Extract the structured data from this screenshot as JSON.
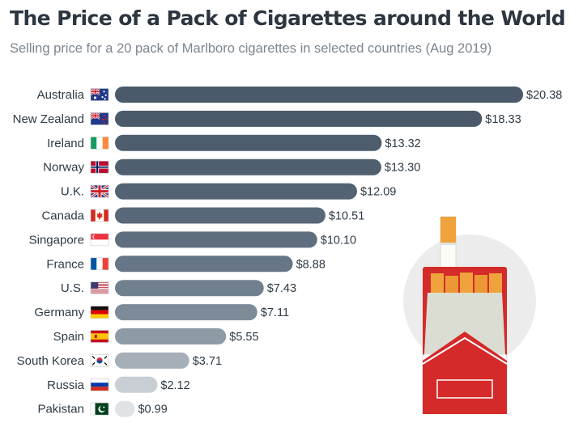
{
  "title": "The Price of a Pack of Cigarettes around the World",
  "subtitle": "Selling price for a 20 pack of Marlboro cigarettes in selected countries (Aug 2019)",
  "chart_data": {
    "type": "bar",
    "orientation": "horizontal",
    "title": "The Price of a Pack of Cigarettes around the World",
    "subtitle": "Selling price for a 20 pack of Marlboro cigarettes in selected countries (Aug 2019)",
    "xlabel": "",
    "ylabel": "",
    "xlim": [
      0,
      20.38
    ],
    "grid": false,
    "legend": "none",
    "value_prefix": "$",
    "categories": [
      "Australia",
      "New Zealand",
      "Ireland",
      "Norway",
      "U.K.",
      "Canada",
      "Singapore",
      "France",
      "U.S.",
      "Germany",
      "Spain",
      "South Korea",
      "Russia",
      "Pakistan"
    ],
    "values": [
      20.38,
      18.33,
      13.32,
      13.3,
      12.09,
      10.51,
      10.1,
      8.88,
      7.43,
      7.11,
      5.55,
      3.71,
      2.12,
      0.99
    ],
    "value_labels": [
      "$20.38",
      "$18.33",
      "$13.32",
      "$13.30",
      "$12.09",
      "$10.51",
      "$10.10",
      "$8.88",
      "$7.43",
      "$7.11",
      "$5.55",
      "$3.71",
      "$2.12",
      "$0.99"
    ],
    "bar_colors": [
      "#4a5a6b",
      "#4a5a6b",
      "#4d5d6e",
      "#4f5f70",
      "#536374",
      "#586879",
      "#5e6e7f",
      "#667686",
      "#71808f",
      "#7d8b99",
      "#8e9aa6",
      "#a6afb8",
      "#c8ced4",
      "#e0e3e6"
    ],
    "flags": [
      "australia-flag",
      "new-zealand-flag",
      "ireland-flag",
      "norway-flag",
      "uk-flag",
      "canada-flag",
      "singapore-flag",
      "france-flag",
      "us-flag",
      "germany-flag",
      "spain-flag",
      "south-korea-flag",
      "russia-flag",
      "pakistan-flag"
    ]
  },
  "illustration": "cigarette-pack-icon",
  "colors": {
    "title": "#2d3640",
    "subtitle": "#7d858d",
    "pack_red": "#d42a2a",
    "circle": "#ececec"
  }
}
